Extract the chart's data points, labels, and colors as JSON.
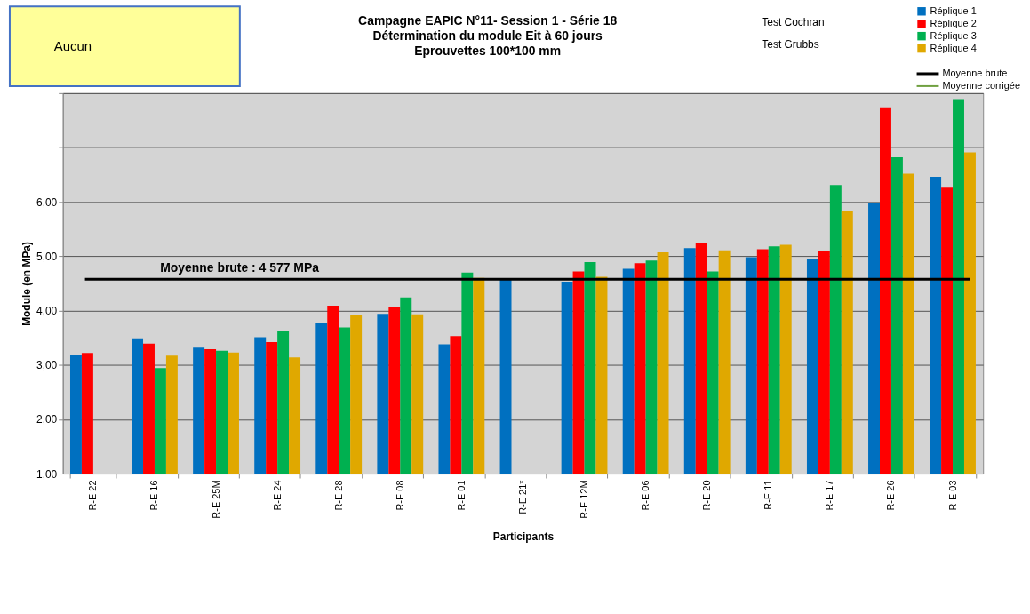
{
  "chart_data": {
    "type": "bar",
    "title": "Campagne EAPIC N°11- Session 1 - Série 18\nDétermination du module Eit à 60 jours\nEprouvettes 100*100 mm",
    "xlabel": "Participants",
    "ylabel": "Module (en MPa)",
    "categories": [
      "R-E 22",
      "R-E 16",
      "R-E 25M",
      "R-E 24",
      "R-E 28",
      "R-E 08",
      "R-E 01",
      "R-E 21*",
      "R-E 12M",
      "R-E 06",
      "R-E 20",
      "R-E 11",
      "R-E 17",
      "R-E 26",
      "R-E 03"
    ],
    "series": [
      {
        "name": "Réplique 1",
        "color": "#0070c0",
        "values": [
          3.18,
          3.49,
          3.32,
          3.51,
          3.77,
          3.94,
          3.38,
          4.57,
          4.53,
          4.77,
          5.15,
          4.98,
          4.94,
          5.97,
          6.46
        ]
      },
      {
        "name": "Réplique 2",
        "color": "#ff0000",
        "values": [
          3.22,
          3.39,
          3.29,
          3.42,
          4.09,
          4.06,
          3.53,
          null,
          4.72,
          4.87,
          5.25,
          5.13,
          5.09,
          7.74,
          6.26
        ]
      },
      {
        "name": "Réplique 3",
        "color": "#00b050",
        "values": [
          null,
          2.94,
          3.26,
          3.62,
          3.69,
          4.24,
          4.7,
          null,
          4.89,
          4.92,
          4.72,
          5.18,
          6.31,
          6.82,
          7.89
        ]
      },
      {
        "name": "Réplique 4",
        "color": "#e0a800",
        "values": [
          null,
          3.17,
          3.23,
          3.14,
          3.91,
          3.93,
          4.6,
          null,
          4.62,
          5.07,
          5.11,
          5.21,
          5.83,
          6.52,
          6.91
        ]
      }
    ],
    "ylim": [
      1,
      8
    ],
    "yticks": [
      {
        "value": 1,
        "label": "1,00"
      },
      {
        "value": 2,
        "label": "2,00"
      },
      {
        "value": 3,
        "label": "3,00"
      },
      {
        "value": 4,
        "label": "4,00"
      },
      {
        "value": 5,
        "label": "5,00"
      },
      {
        "value": 6,
        "label": "6,00"
      },
      {
        "value": 7,
        "label": null
      },
      {
        "value": 8,
        "label": null
      }
    ],
    "grid": "y",
    "legend": "top right",
    "ref_lines": [
      {
        "axis": "y",
        "value": 4.577,
        "label": "Moyenne brute : 4 577 MPa",
        "color": "#000000"
      }
    ],
    "annotations": [
      "Aucun",
      "Test Cochran",
      "Test Grubbs",
      "Moyenne brute",
      "Moyenne corrigée"
    ]
  }
}
